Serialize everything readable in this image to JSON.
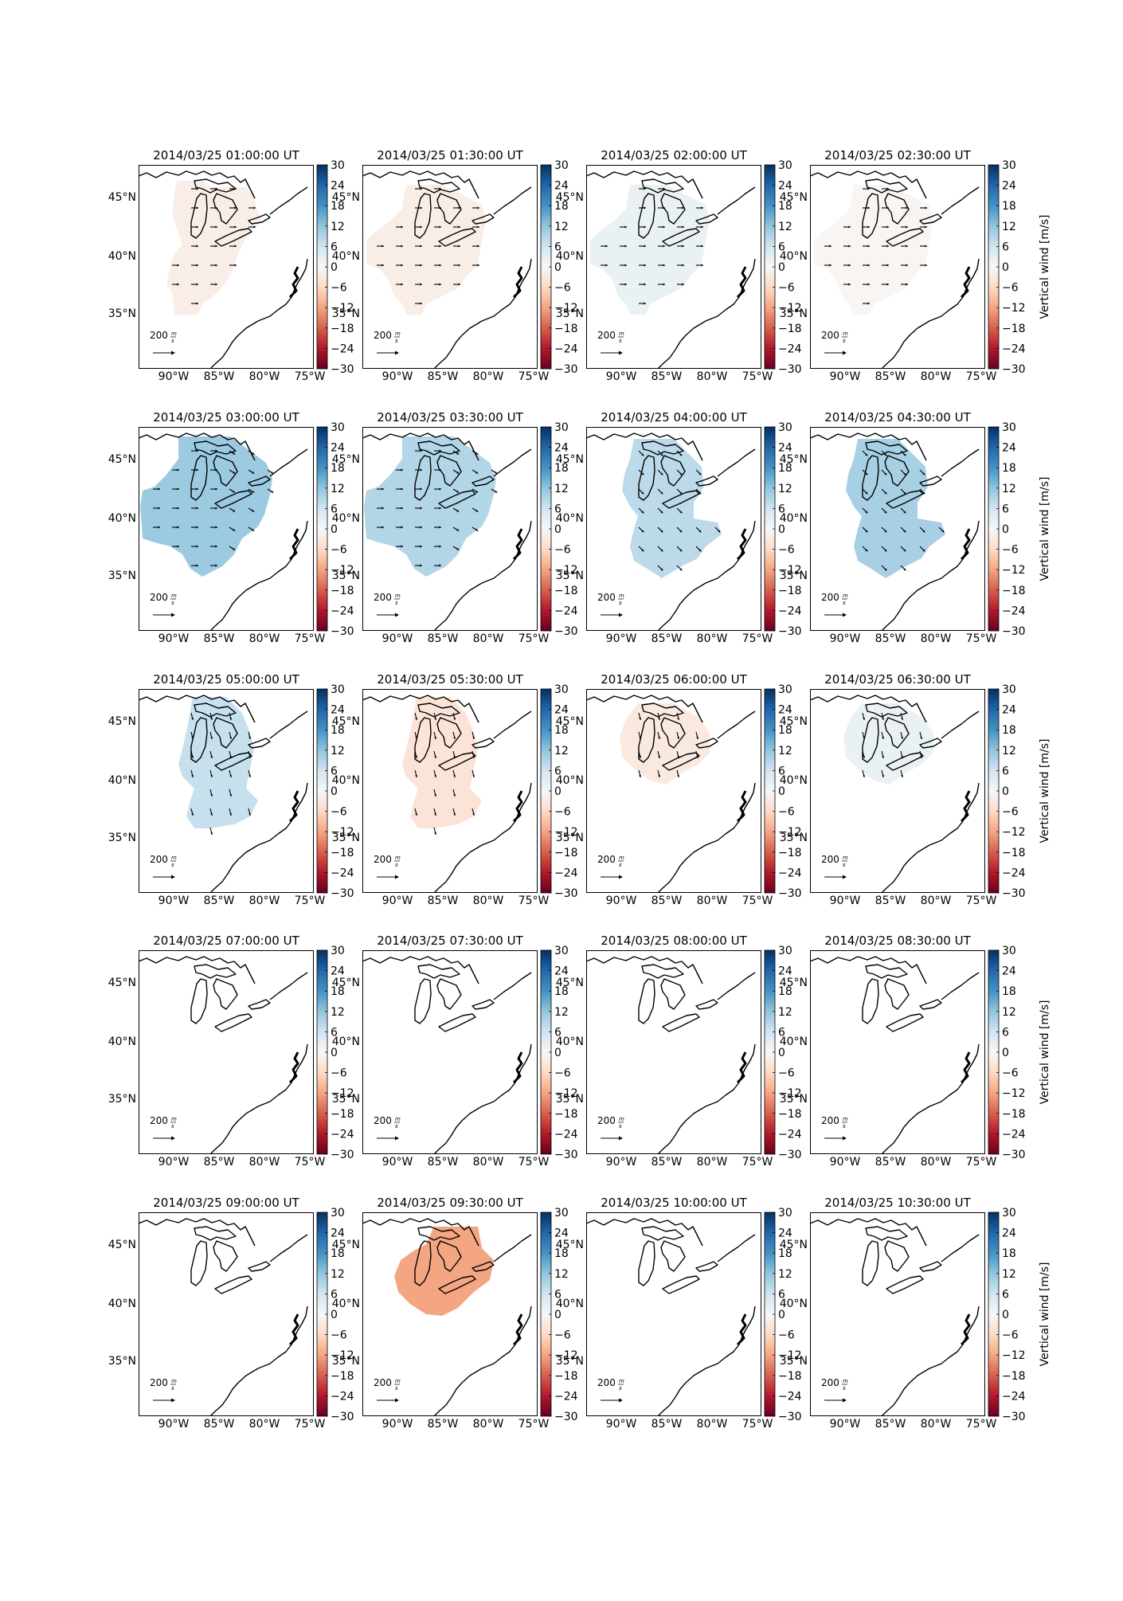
{
  "figure": {
    "colorbar": {
      "ticks": [
        "30",
        "24",
        "18",
        "12",
        "6",
        "0",
        "−6",
        "−12",
        "−18",
        "−24",
        "−30"
      ],
      "label": "Vertical wind [m/s]",
      "range": [
        -30,
        30
      ],
      "colors": [
        "#053061",
        "#2166ac",
        "#4393c3",
        "#92c5de",
        "#d1e5f0",
        "#f7f7f7",
        "#fddbc7",
        "#f4a582",
        "#d6604d",
        "#b2182b",
        "#67001f"
      ]
    },
    "lat_ticks": [
      "45°N",
      "40°N",
      "35°N"
    ],
    "lon_ticks": [
      "90°W",
      "85°W",
      "80°W",
      "75°W"
    ],
    "quiver_key": {
      "value": "200",
      "unit_num": "m",
      "unit_den": "s"
    },
    "panels": [
      {
        "title": "2014/03/25 01:00:00 UT",
        "wind": -2,
        "region": "full_upper",
        "arrows": "east"
      },
      {
        "title": "2014/03/25 01:30:00 UT",
        "wind": -2,
        "region": "wide",
        "arrows": "east"
      },
      {
        "title": "2014/03/25 02:00:00 UT",
        "wind": 2,
        "region": "wide",
        "arrows": "east"
      },
      {
        "title": "2014/03/25 02:30:00 UT",
        "wind": -0.5,
        "region": "wide",
        "arrows": "east"
      },
      {
        "title": "2014/03/25 03:00:00 UT",
        "wind": 11,
        "region": "widest",
        "arrows": "east_se"
      },
      {
        "title": "2014/03/25 03:30:00 UT",
        "wind": 9,
        "region": "widest",
        "arrows": "east_se"
      },
      {
        "title": "2014/03/25 04:00:00 UT",
        "wind": 8,
        "region": "mid",
        "arrows": "se"
      },
      {
        "title": "2014/03/25 04:30:00 UT",
        "wind": 10,
        "region": "mid",
        "arrows": "se"
      },
      {
        "title": "2014/03/25 05:00:00 UT",
        "wind": 7,
        "region": "mid_narrow",
        "arrows": "south"
      },
      {
        "title": "2014/03/25 05:30:00 UT",
        "wind": -4,
        "region": "mid_narrow",
        "arrows": "south"
      },
      {
        "title": "2014/03/25 06:00:00 UT",
        "wind": -3,
        "region": "upper",
        "arrows": "south"
      },
      {
        "title": "2014/03/25 06:30:00 UT",
        "wind": 2,
        "region": "upper",
        "arrows": "south"
      },
      {
        "title": "2014/03/25 07:00:00 UT",
        "wind": null,
        "region": "none",
        "arrows": "none"
      },
      {
        "title": "2014/03/25 07:30:00 UT",
        "wind": null,
        "region": "none",
        "arrows": "none"
      },
      {
        "title": "2014/03/25 08:00:00 UT",
        "wind": null,
        "region": "none",
        "arrows": "none"
      },
      {
        "title": "2014/03/25 08:30:00 UT",
        "wind": null,
        "region": "none",
        "arrows": "none"
      },
      {
        "title": "2014/03/25 09:00:00 UT",
        "wind": null,
        "region": "none",
        "arrows": "none"
      },
      {
        "title": "2014/03/25 09:30:00 UT",
        "wind": -12,
        "region": "lakes",
        "arrows": "none"
      },
      {
        "title": "2014/03/25 10:00:00 UT",
        "wind": null,
        "region": "none",
        "arrows": "none"
      },
      {
        "title": "2014/03/25 10:30:00 UT",
        "wind": null,
        "region": "none",
        "arrows": "none"
      }
    ]
  }
}
